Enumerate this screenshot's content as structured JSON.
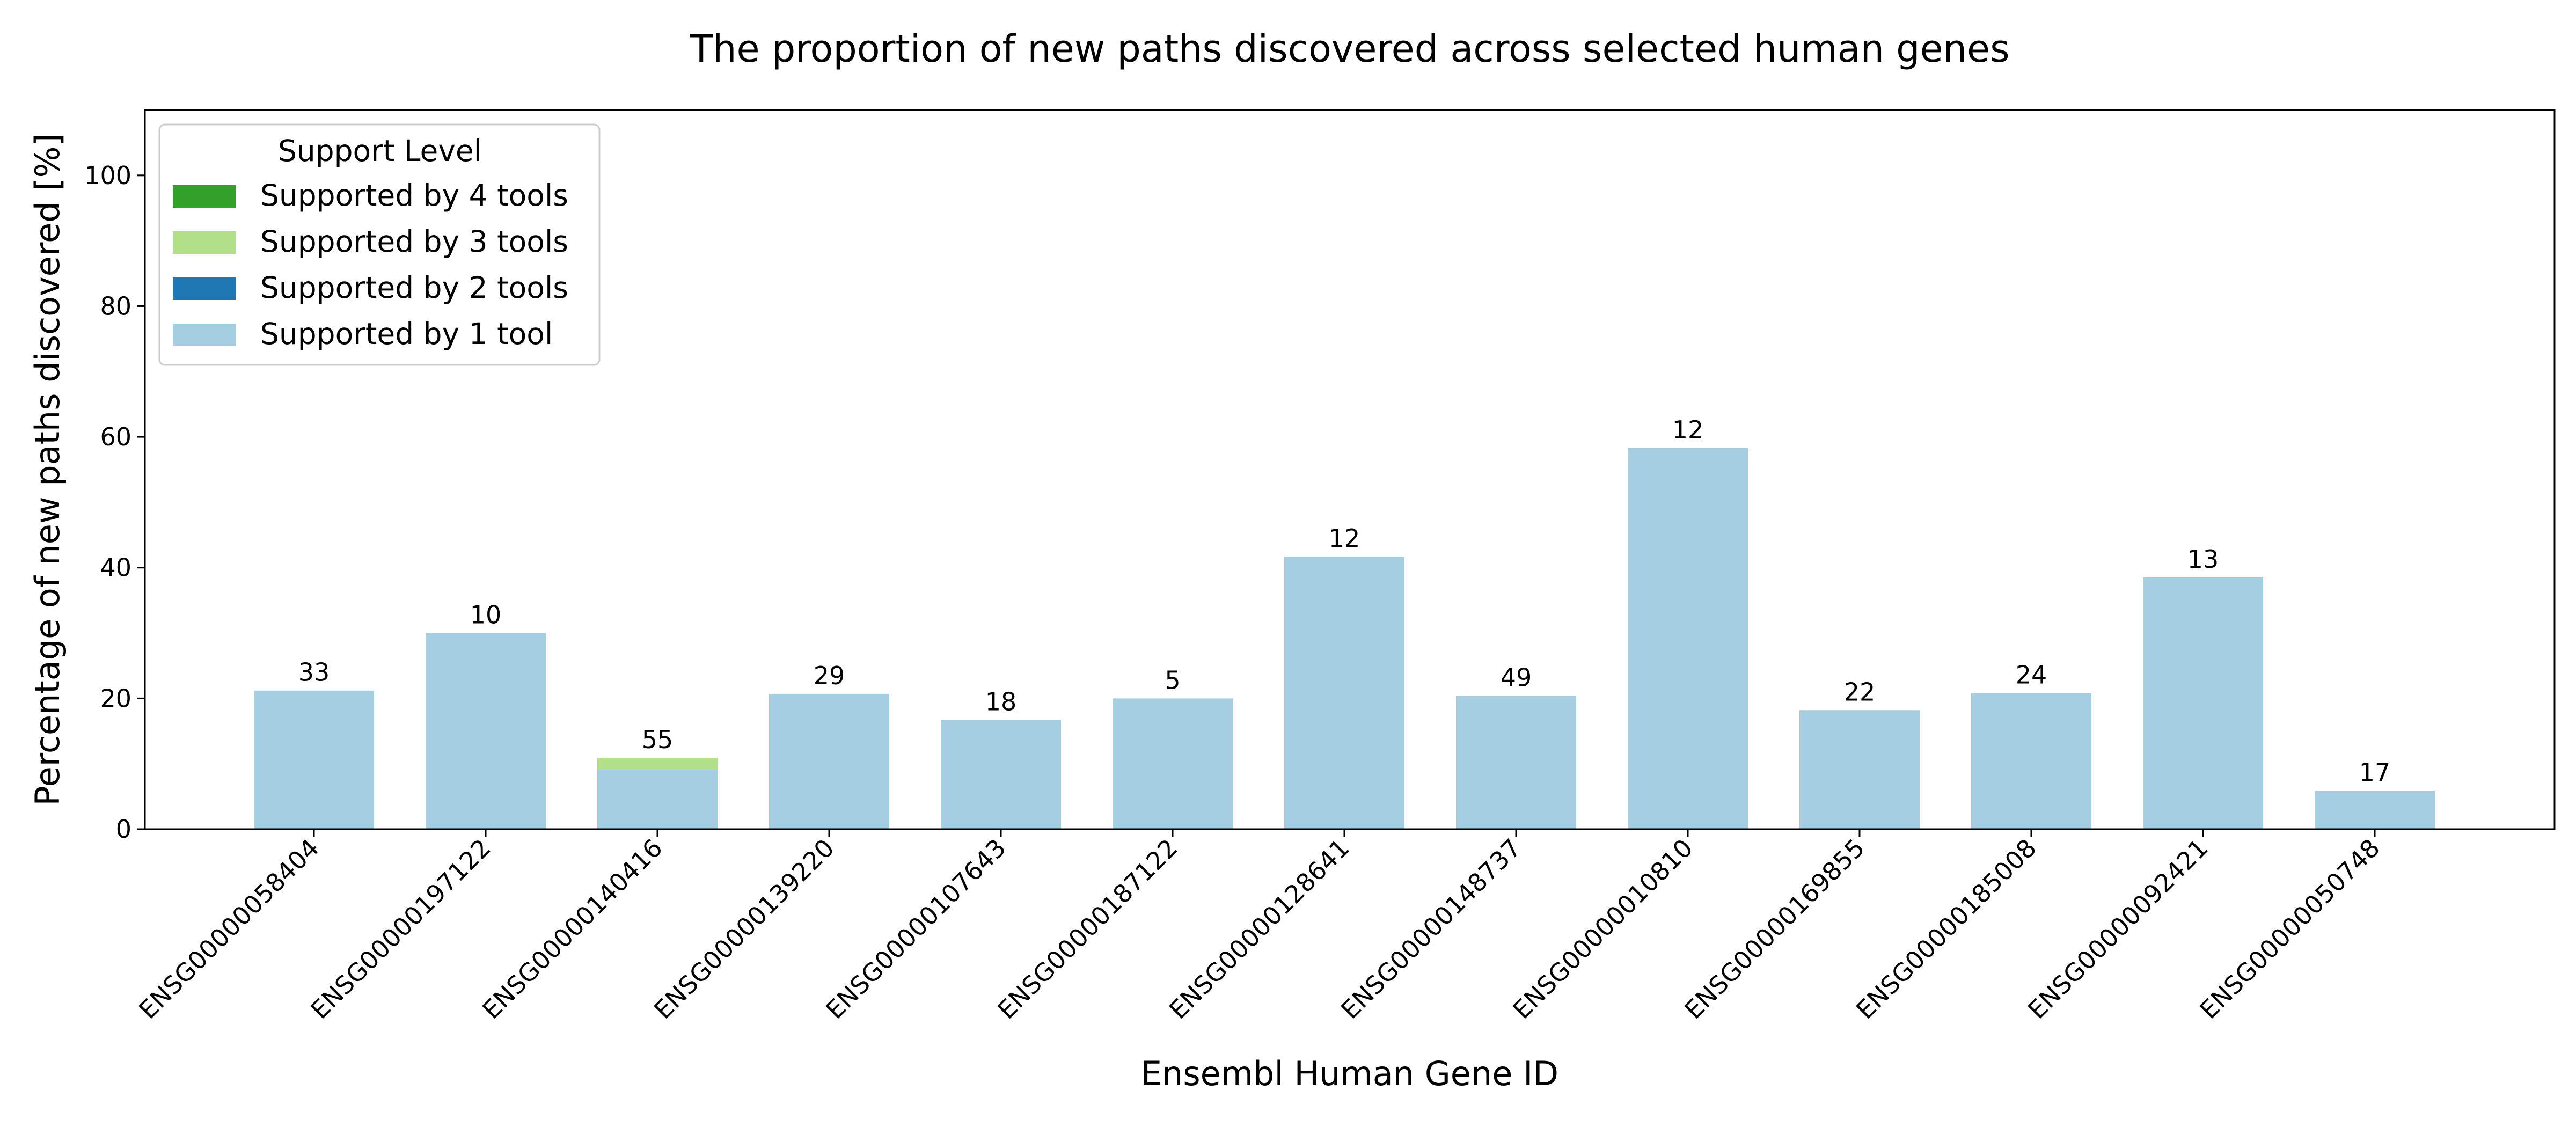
{
  "chart_data": {
    "type": "bar",
    "stacked": true,
    "title": "The proportion of new paths discovered across selected human genes",
    "xlabel": "Ensembl Human Gene ID",
    "ylabel": "Percentage of new paths discovered [%]",
    "ylim": [
      0,
      110
    ],
    "yticks": [
      "0",
      "20",
      "40",
      "60",
      "80",
      "100"
    ],
    "grid": false,
    "legend_position": "top-left",
    "legend_title": "Support Level",
    "categories": [
      "ENSG00000058404",
      "ENSG00000197122",
      "ENSG00000140416",
      "ENSG00000139220",
      "ENSG00000107643",
      "ENSG00000187122",
      "ENSG00000128641",
      "ENSG00000148737",
      "ENSG00000010810",
      "ENSG00000169855",
      "ENSG00000185008",
      "ENSG00000092421",
      "ENSG00000050748"
    ],
    "series": [
      {
        "name": "Supported by 1 tool",
        "color": "#a6cee3",
        "values": [
          21.2,
          30.0,
          9.1,
          20.7,
          16.7,
          20.0,
          41.7,
          20.4,
          58.3,
          18.2,
          20.8,
          38.5,
          5.9
        ]
      },
      {
        "name": "Supported by 2 tools",
        "color": "#1f78b4",
        "values": [
          0,
          0,
          0,
          0,
          0,
          0,
          0,
          0,
          0,
          0,
          0,
          0,
          0
        ]
      },
      {
        "name": "Supported by 3 tools",
        "color": "#b2df8a",
        "values": [
          0,
          0,
          1.8,
          0,
          0,
          0,
          0,
          0,
          0,
          0,
          0,
          0,
          0
        ]
      },
      {
        "name": "Supported by 4 tools",
        "color": "#33a02c",
        "values": [
          0,
          0,
          0,
          0,
          0,
          0,
          0,
          0,
          0,
          0,
          0,
          0,
          0
        ]
      }
    ],
    "legend_order": [
      "Supported by 4 tools",
      "Supported by 3 tools",
      "Supported by 2 tools",
      "Supported by 1 tool"
    ],
    "bar_labels": [
      "33",
      "10",
      "55",
      "29",
      "18",
      "5",
      "12",
      "49",
      "12",
      "22",
      "24",
      "13",
      "17"
    ]
  }
}
